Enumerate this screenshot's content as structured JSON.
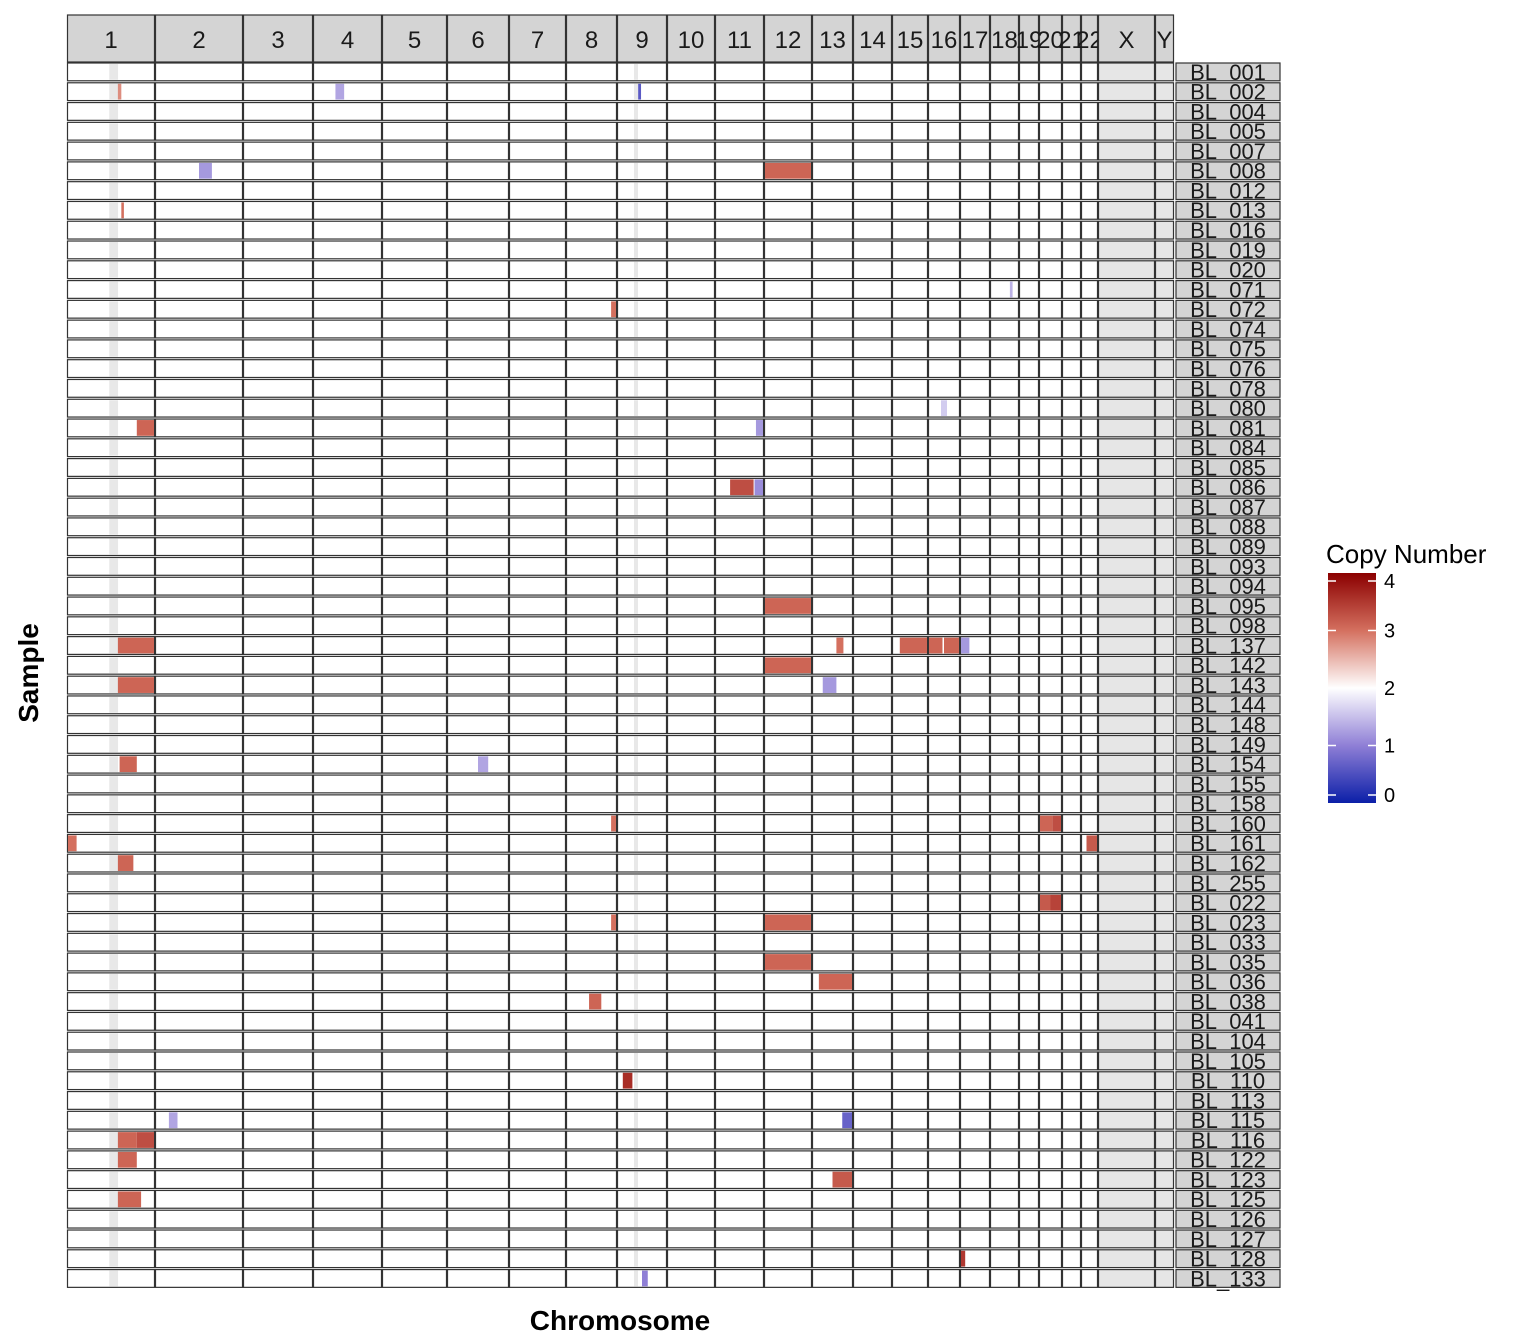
{
  "chart_data": {
    "type": "heatmap",
    "title": "",
    "xlabel": "Chromosome",
    "ylabel": "Sample",
    "chromosomes": [
      "1",
      "2",
      "3",
      "4",
      "5",
      "6",
      "7",
      "8",
      "9",
      "10",
      "11",
      "12",
      "13",
      "14",
      "15",
      "16",
      "17",
      "18",
      "19",
      "20",
      "21",
      "22",
      "X",
      "Y"
    ],
    "samples": [
      "BL_001",
      "BL_002",
      "BL_004",
      "BL_005",
      "BL_007",
      "BL_008",
      "BL_012",
      "BL_013",
      "BL_016",
      "BL_019",
      "BL_020",
      "BL_071",
      "BL_072",
      "BL_074",
      "BL_075",
      "BL_076",
      "BL_078",
      "BL_080",
      "BL_081",
      "BL_084",
      "BL_085",
      "BL_086",
      "BL_087",
      "BL_088",
      "BL_089",
      "BL_093",
      "BL_094",
      "BL_095",
      "BL_098",
      "BL_137",
      "BL_142",
      "BL_143",
      "BL_144",
      "BL_148",
      "BL_149",
      "BL_154",
      "BL_155",
      "BL_158",
      "BL_160",
      "BL_161",
      "BL_162",
      "BL_255",
      "BL_022",
      "BL_023",
      "BL_033",
      "BL_035",
      "BL_036",
      "BL_038",
      "BL_041",
      "BL_104",
      "BL_105",
      "BL_110",
      "BL_113",
      "BL_115",
      "BL_116",
      "BL_122",
      "BL_123",
      "BL_125",
      "BL_126",
      "BL_127",
      "BL_128",
      "BL_133"
    ],
    "legend": {
      "title": "Copy Number",
      "ticks": [
        0,
        1,
        2,
        3,
        4
      ],
      "colors": [
        "#0b1fa8",
        "#8f7fd6",
        "#ffffff",
        "#d4705f",
        "#8b0000"
      ]
    },
    "segments": [
      {
        "sample": "BL_002",
        "chrom": "4",
        "start": 0.32,
        "end": 0.45,
        "cn": 1.3
      },
      {
        "sample": "BL_002",
        "chrom": "1",
        "start": 0.58,
        "end": 0.62,
        "cn": 2.8
      },
      {
        "sample": "BL_002",
        "chrom": "9",
        "start": 0.42,
        "end": 0.48,
        "cn": 0.6
      },
      {
        "sample": "BL_008",
        "chrom": "2",
        "start": 0.5,
        "end": 0.65,
        "cn": 1.2
      },
      {
        "sample": "BL_008",
        "chrom": "12",
        "start": 0.0,
        "end": 1.0,
        "cn": 3.1
      },
      {
        "sample": "BL_013",
        "chrom": "1",
        "start": 0.62,
        "end": 0.65,
        "cn": 3.0
      },
      {
        "sample": "BL_071",
        "chrom": "18",
        "start": 0.7,
        "end": 0.8,
        "cn": 1.4
      },
      {
        "sample": "BL_072",
        "chrom": "8",
        "start": 0.9,
        "end": 1.0,
        "cn": 3.0
      },
      {
        "sample": "BL_080",
        "chrom": "16",
        "start": 0.4,
        "end": 0.6,
        "cn": 1.6
      },
      {
        "sample": "BL_081",
        "chrom": "1",
        "start": 0.8,
        "end": 1.0,
        "cn": 3.1
      },
      {
        "sample": "BL_081",
        "chrom": "11",
        "start": 0.85,
        "end": 1.0,
        "cn": 1.2
      },
      {
        "sample": "BL_086",
        "chrom": "11",
        "start": 0.3,
        "end": 0.8,
        "cn": 3.3
      },
      {
        "sample": "BL_086",
        "chrom": "11",
        "start": 0.82,
        "end": 1.0,
        "cn": 1.1
      },
      {
        "sample": "BL_095",
        "chrom": "12",
        "start": 0.0,
        "end": 1.0,
        "cn": 3.1
      },
      {
        "sample": "BL_137",
        "chrom": "1",
        "start": 0.58,
        "end": 1.0,
        "cn": 3.1
      },
      {
        "sample": "BL_137",
        "chrom": "13",
        "start": 0.6,
        "end": 0.78,
        "cn": 3.0
      },
      {
        "sample": "BL_137",
        "chrom": "15",
        "start": 0.2,
        "end": 1.0,
        "cn": 3.1
      },
      {
        "sample": "BL_137",
        "chrom": "16",
        "start": 0.0,
        "end": 0.45,
        "cn": 3.1
      },
      {
        "sample": "BL_137",
        "chrom": "16",
        "start": 0.5,
        "end": 1.0,
        "cn": 3.1
      },
      {
        "sample": "BL_137",
        "chrom": "17",
        "start": 0.0,
        "end": 0.3,
        "cn": 1.2
      },
      {
        "sample": "BL_142",
        "chrom": "12",
        "start": 0.0,
        "end": 1.0,
        "cn": 3.1
      },
      {
        "sample": "BL_143",
        "chrom": "1",
        "start": 0.58,
        "end": 1.0,
        "cn": 3.1
      },
      {
        "sample": "BL_143",
        "chrom": "13",
        "start": 0.25,
        "end": 0.6,
        "cn": 1.2
      },
      {
        "sample": "BL_154",
        "chrom": "1",
        "start": 0.6,
        "end": 0.8,
        "cn": 3.1
      },
      {
        "sample": "BL_154",
        "chrom": "6",
        "start": 0.5,
        "end": 0.67,
        "cn": 1.3
      },
      {
        "sample": "BL_160",
        "chrom": "8",
        "start": 0.9,
        "end": 1.0,
        "cn": 3.0
      },
      {
        "sample": "BL_160",
        "chrom": "20",
        "start": 0.0,
        "end": 0.6,
        "cn": 3.1
      },
      {
        "sample": "BL_160",
        "chrom": "20",
        "start": 0.6,
        "end": 1.0,
        "cn": 3.3
      },
      {
        "sample": "BL_161",
        "chrom": "1",
        "start": 0.0,
        "end": 0.1,
        "cn": 3.0
      },
      {
        "sample": "BL_161",
        "chrom": "22",
        "start": 0.3,
        "end": 1.0,
        "cn": 3.2
      },
      {
        "sample": "BL_162",
        "chrom": "1",
        "start": 0.58,
        "end": 0.76,
        "cn": 3.1
      },
      {
        "sample": "BL_022",
        "chrom": "20",
        "start": 0.0,
        "end": 0.5,
        "cn": 3.2
      },
      {
        "sample": "BL_022",
        "chrom": "20",
        "start": 0.5,
        "end": 1.0,
        "cn": 3.4
      },
      {
        "sample": "BL_023",
        "chrom": "8",
        "start": 0.9,
        "end": 1.0,
        "cn": 3.0
      },
      {
        "sample": "BL_023",
        "chrom": "12",
        "start": 0.0,
        "end": 1.0,
        "cn": 3.1
      },
      {
        "sample": "BL_035",
        "chrom": "12",
        "start": 0.0,
        "end": 1.0,
        "cn": 3.1
      },
      {
        "sample": "BL_036",
        "chrom": "13",
        "start": 0.15,
        "end": 1.0,
        "cn": 3.1
      },
      {
        "sample": "BL_038",
        "chrom": "8",
        "start": 0.45,
        "end": 0.7,
        "cn": 3.1
      },
      {
        "sample": "BL_110",
        "chrom": "9",
        "start": 0.1,
        "end": 0.3,
        "cn": 3.6
      },
      {
        "sample": "BL_115",
        "chrom": "2",
        "start": 0.15,
        "end": 0.25,
        "cn": 1.3
      },
      {
        "sample": "BL_115",
        "chrom": "13",
        "start": 0.75,
        "end": 1.0,
        "cn": 0.7
      },
      {
        "sample": "BL_116",
        "chrom": "1",
        "start": 0.58,
        "end": 0.8,
        "cn": 3.1
      },
      {
        "sample": "BL_116",
        "chrom": "1",
        "start": 0.8,
        "end": 1.0,
        "cn": 3.3
      },
      {
        "sample": "BL_122",
        "chrom": "1",
        "start": 0.58,
        "end": 0.8,
        "cn": 3.1
      },
      {
        "sample": "BL_123",
        "chrom": "13",
        "start": 0.5,
        "end": 1.0,
        "cn": 3.2
      },
      {
        "sample": "BL_125",
        "chrom": "1",
        "start": 0.58,
        "end": 0.85,
        "cn": 3.1
      },
      {
        "sample": "BL_128",
        "chrom": "17",
        "start": 0.0,
        "end": 0.15,
        "cn": 3.5
      },
      {
        "sample": "BL_133",
        "chrom": "9",
        "start": 0.5,
        "end": 0.62,
        "cn": 1.0
      }
    ]
  }
}
